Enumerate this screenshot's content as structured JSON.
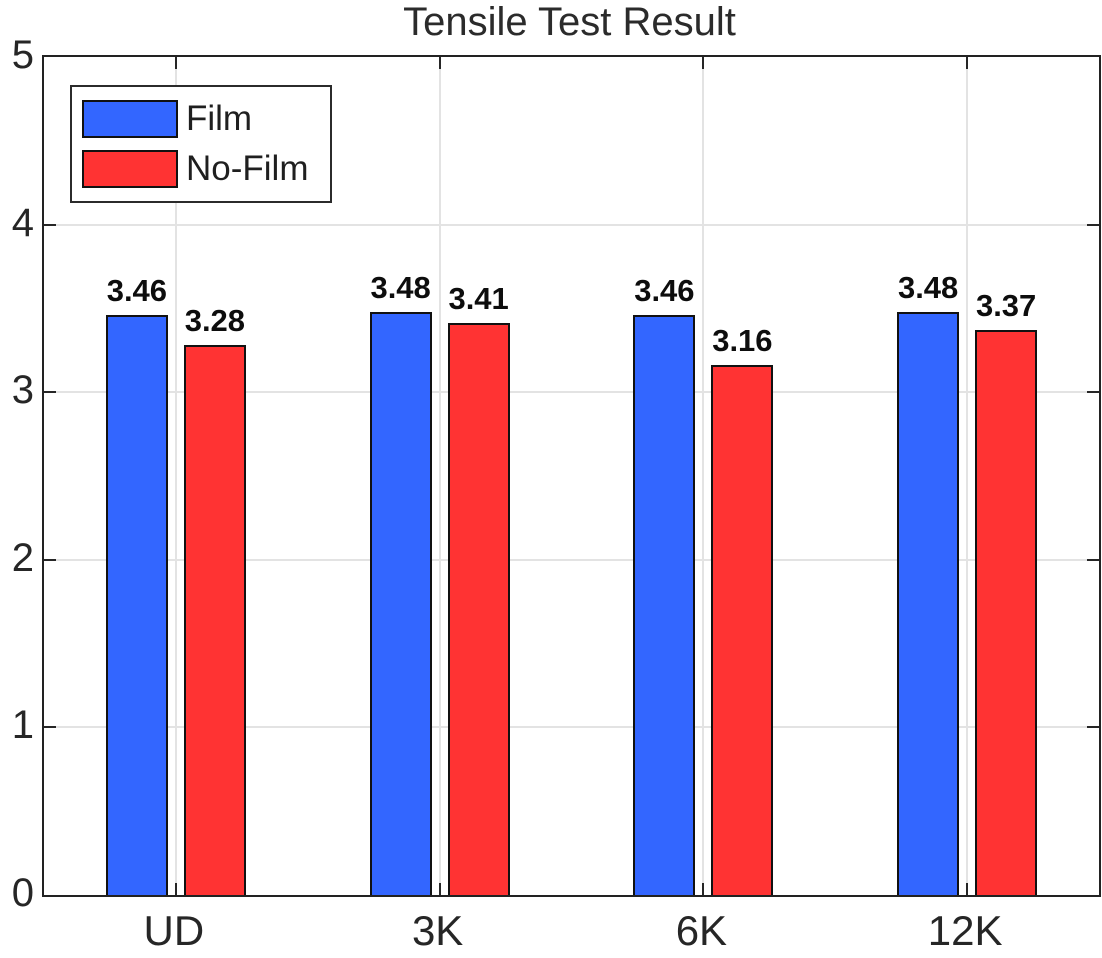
{
  "chart_data": {
    "type": "bar",
    "title": "Tensile Test Result",
    "categories": [
      "UD",
      "3K",
      "6K",
      "12K"
    ],
    "series": [
      {
        "name": "Film",
        "color": "#3366ff",
        "values": [
          3.46,
          3.48,
          3.46,
          3.48
        ]
      },
      {
        "name": "No-Film",
        "color": "#ff3333",
        "values": [
          3.28,
          3.41,
          3.16,
          3.37
        ]
      }
    ],
    "ylim": [
      0,
      5
    ],
    "yticks": [
      0,
      1,
      2,
      3,
      4,
      5
    ],
    "grid": true,
    "grid_color": "#e3e3e3",
    "legend_position": "top-left",
    "value_labels": true,
    "xlabel": "",
    "ylabel": ""
  }
}
